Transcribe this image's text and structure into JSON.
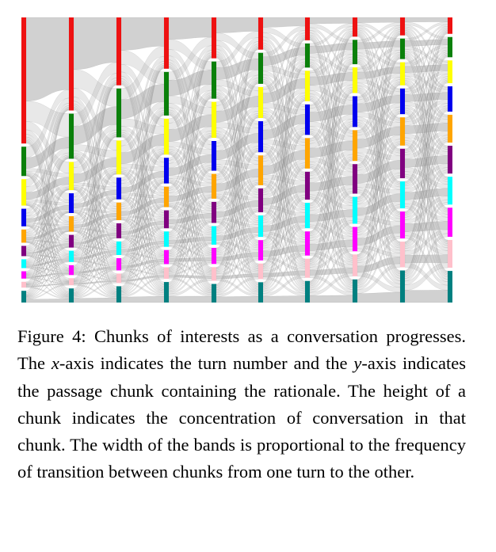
{
  "chart_data": {
    "type": "sankey",
    "turns": [
      1,
      2,
      3,
      4,
      5,
      6,
      7,
      8,
      9,
      10
    ],
    "chunk_colors": [
      "#ee1111",
      "#0a800a",
      "#ffff00",
      "#0000ee",
      "#ffa500",
      "#800080",
      "#00ffff",
      "#ff00ff",
      "#ffc0cb",
      "#008080"
    ],
    "concentration": [
      [
        0.43,
        0.1,
        0.09,
        0.06,
        0.045,
        0.035,
        0.03,
        0.025,
        0.02,
        0.04
      ],
      [
        0.33,
        0.16,
        0.1,
        0.07,
        0.055,
        0.045,
        0.04,
        0.035,
        0.025,
        0.05
      ],
      [
        0.25,
        0.18,
        0.125,
        0.08,
        0.065,
        0.055,
        0.05,
        0.045,
        0.035,
        0.06
      ],
      [
        0.2,
        0.17,
        0.14,
        0.1,
        0.08,
        0.07,
        0.06,
        0.055,
        0.045,
        0.08
      ],
      [
        0.165,
        0.15,
        0.145,
        0.12,
        0.1,
        0.085,
        0.075,
        0.065,
        0.055,
        0.075
      ],
      [
        0.135,
        0.13,
        0.13,
        0.13,
        0.125,
        0.1,
        0.09,
        0.085,
        0.065,
        0.085
      ],
      [
        0.09,
        0.095,
        0.12,
        0.12,
        0.12,
        0.11,
        0.1,
        0.095,
        0.075,
        0.085
      ],
      [
        0.075,
        0.095,
        0.1,
        0.12,
        0.12,
        0.115,
        0.105,
        0.095,
        0.085,
        0.09
      ],
      [
        0.07,
        0.08,
        0.09,
        0.1,
        0.11,
        0.115,
        0.105,
        0.105,
        0.1,
        0.125
      ],
      [
        0.065,
        0.08,
        0.09,
        0.1,
        0.11,
        0.11,
        0.11,
        0.115,
        0.11,
        0.125
      ]
    ],
    "xlabel": "",
    "ylabel": "",
    "legend": "none",
    "grid": false
  },
  "caption": {
    "label": "Figure 4:",
    "part1": "Chunks of interests as a conversation progresses. The ",
    "x_var": "x",
    "part2": "-axis indicates the turn number and the ",
    "y_var": "y",
    "part3": "-axis indicates the passage chunk containing the rationale. The height of a chunk indicates the concentration of conversation in that chunk. The width of the bands is proportional to the frequency of transition between chunks from one turn to the other."
  }
}
